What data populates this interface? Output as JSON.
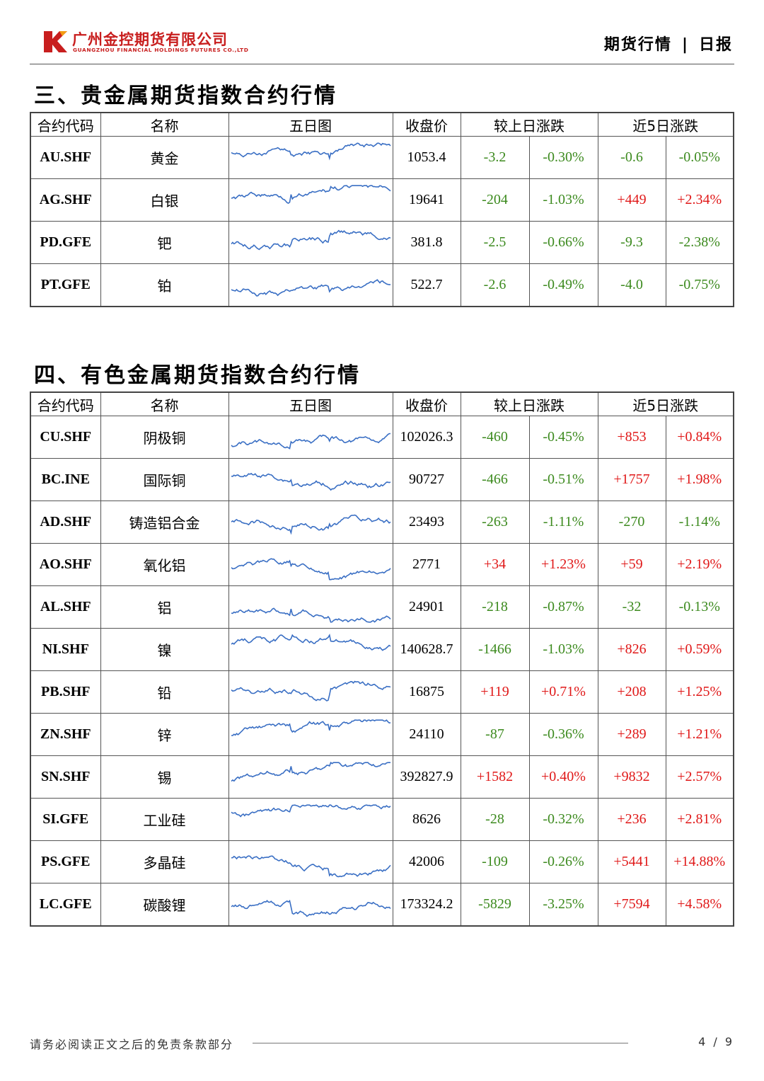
{
  "header": {
    "company_cn": "广州金控期货有限公司",
    "company_en": "GUANGZHOU FINANCIAL HOLDINGS FUTURES CO.,LTD",
    "report_type": "期货行情",
    "separator": "|",
    "report_period": "日报",
    "brand_color": "#c81e1e"
  },
  "columns": {
    "code": "合约代码",
    "name": "名称",
    "chart": "五日图",
    "close": "收盘价",
    "daily_change": "较上日涨跌",
    "five_day_change": "近5日涨跌"
  },
  "colors": {
    "up": "#e01818",
    "down": "#3c8a1e",
    "line": "#3a6fc4"
  },
  "sections": [
    {
      "title": "三、贵金属期货指数合约行情",
      "rows": [
        {
          "code": "AU.SHF",
          "name": "黄金",
          "close": "1053.4",
          "d_abs": "-3.2",
          "d_pct": "-0.30%",
          "w_abs": "-0.6",
          "w_pct": "-0.05%",
          "spark_icon": "five-day-sparkline"
        },
        {
          "code": "AG.SHF",
          "name": "白银",
          "close": "19641",
          "d_abs": "-204",
          "d_pct": "-1.03%",
          "w_abs": "+449",
          "w_pct": "+2.34%",
          "spark_icon": "five-day-sparkline"
        },
        {
          "code": "PD.GFE",
          "name": "钯",
          "close": "381.8",
          "d_abs": "-2.5",
          "d_pct": "-0.66%",
          "w_abs": "-9.3",
          "w_pct": "-2.38%",
          "spark_icon": "five-day-sparkline"
        },
        {
          "code": "PT.GFE",
          "name": "铂",
          "close": "522.7",
          "d_abs": "-2.6",
          "d_pct": "-0.49%",
          "w_abs": "-4.0",
          "w_pct": "-0.75%",
          "spark_icon": "five-day-sparkline"
        }
      ]
    },
    {
      "title": "四、有色金属期货指数合约行情",
      "rows": [
        {
          "code": "CU.SHF",
          "name": "阴极铜",
          "close": "102026.3",
          "d_abs": "-460",
          "d_pct": "-0.45%",
          "w_abs": "+853",
          "w_pct": "+0.84%",
          "spark_icon": "five-day-sparkline"
        },
        {
          "code": "BC.INE",
          "name": "国际铜",
          "close": "90727",
          "d_abs": "-466",
          "d_pct": "-0.51%",
          "w_abs": "+1757",
          "w_pct": "+1.98%",
          "spark_icon": "five-day-sparkline"
        },
        {
          "code": "AD.SHF",
          "name": "铸造铝合金",
          "close": "23493",
          "d_abs": "-263",
          "d_pct": "-1.11%",
          "w_abs": "-270",
          "w_pct": "-1.14%",
          "spark_icon": "five-day-sparkline"
        },
        {
          "code": "AO.SHF",
          "name": "氧化铝",
          "close": "2771",
          "d_abs": "+34",
          "d_pct": "+1.23%",
          "w_abs": "+59",
          "w_pct": "+2.19%",
          "spark_icon": "five-day-sparkline"
        },
        {
          "code": "AL.SHF",
          "name": "铝",
          "close": "24901",
          "d_abs": "-218",
          "d_pct": "-0.87%",
          "w_abs": "-32",
          "w_pct": "-0.13%",
          "spark_icon": "five-day-sparkline"
        },
        {
          "code": "NI.SHF",
          "name": "镍",
          "close": "140628.7",
          "d_abs": "-1466",
          "d_pct": "-1.03%",
          "w_abs": "+826",
          "w_pct": "+0.59%",
          "spark_icon": "five-day-sparkline"
        },
        {
          "code": "PB.SHF",
          "name": "铅",
          "close": "16875",
          "d_abs": "+119",
          "d_pct": "+0.71%",
          "w_abs": "+208",
          "w_pct": "+1.25%",
          "spark_icon": "five-day-sparkline"
        },
        {
          "code": "ZN.SHF",
          "name": "锌",
          "close": "24110",
          "d_abs": "-87",
          "d_pct": "-0.36%",
          "w_abs": "+289",
          "w_pct": "+1.21%",
          "spark_icon": "five-day-sparkline"
        },
        {
          "code": "SN.SHF",
          "name": "锡",
          "close": "392827.9",
          "d_abs": "+1582",
          "d_pct": "+0.40%",
          "w_abs": "+9832",
          "w_pct": "+2.57%",
          "spark_icon": "five-day-sparkline"
        },
        {
          "code": "SI.GFE",
          "name": "工业硅",
          "close": "8626",
          "d_abs": "-28",
          "d_pct": "-0.32%",
          "w_abs": "+236",
          "w_pct": "+2.81%",
          "spark_icon": "five-day-sparkline"
        },
        {
          "code": "PS.GFE",
          "name": "多晶硅",
          "close": "42006",
          "d_abs": "-109",
          "d_pct": "-0.26%",
          "w_abs": "+5441",
          "w_pct": "+14.88%",
          "spark_icon": "five-day-sparkline"
        },
        {
          "code": "LC.GFE",
          "name": "碳酸锂",
          "close": "173324.2",
          "d_abs": "-5829",
          "d_pct": "-3.25%",
          "w_abs": "+7594",
          "w_pct": "+4.58%",
          "spark_icon": "five-day-sparkline"
        }
      ]
    }
  ],
  "footer": {
    "disclaimer": "请务必阅读正文之后的免责条款部分",
    "page": "4 / 9"
  }
}
